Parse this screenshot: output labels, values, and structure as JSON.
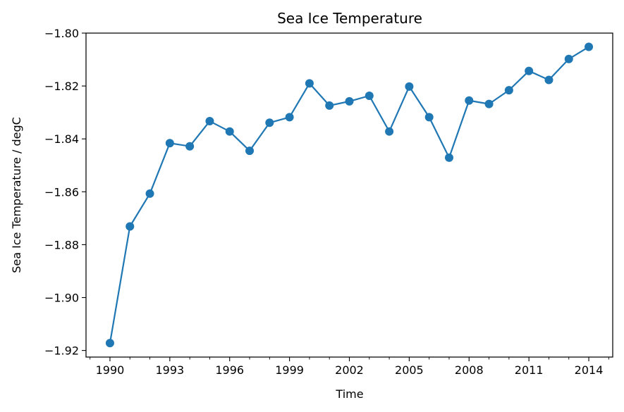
{
  "chart_data": {
    "type": "line",
    "title": "Sea Ice Temperature",
    "xlabel": "Time",
    "ylabel": "Sea Ice Temperature / degC",
    "xlim": [
      1988.8,
      2015.2
    ],
    "ylim": [
      -1.9225,
      -1.8
    ],
    "xticks": [
      1990,
      1993,
      1996,
      1999,
      2002,
      2005,
      2008,
      2011,
      2014
    ],
    "yticks": [
      -1.92,
      -1.9,
      -1.88,
      -1.86,
      -1.84,
      -1.82,
      -1.8
    ],
    "ytick_labels": [
      "−1.92",
      "−1.90",
      "−1.88",
      "−1.86",
      "−1.84",
      "−1.82",
      "−1.80"
    ],
    "grid": false,
    "series": [
      {
        "color": "#1f77b4",
        "marker": "circle",
        "x": [
          1990,
          1991,
          1992,
          1993,
          1994,
          1995,
          1996,
          1997,
          1998,
          1999,
          2000,
          2001,
          2002,
          2003,
          2004,
          2005,
          2006,
          2007,
          2008,
          2009,
          2010,
          2011,
          2012,
          2013,
          2014
        ],
        "y": [
          -1.9172,
          -1.8731,
          -1.8607,
          -1.8416,
          -1.8428,
          -1.8333,
          -1.8372,
          -1.8445,
          -1.8339,
          -1.8318,
          -1.819,
          -1.8274,
          -1.8258,
          -1.8237,
          -1.8372,
          -1.8202,
          -1.8318,
          -1.8471,
          -1.8255,
          -1.8268,
          -1.8216,
          -1.8143,
          -1.8177,
          -1.8098,
          -1.8052
        ]
      }
    ]
  }
}
